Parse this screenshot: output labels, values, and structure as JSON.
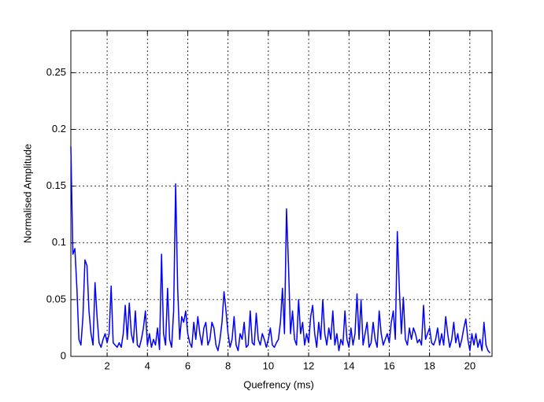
{
  "chart_data": {
    "type": "line",
    "xlabel": "Quefrency (ms)",
    "ylabel": "Normalised Amplitude",
    "xlim": [
      0.2,
      21.1
    ],
    "ylim": [
      0,
      0.287
    ],
    "xticks": [
      2,
      4,
      6,
      8,
      10,
      12,
      14,
      16,
      18,
      20
    ],
    "yticks": [
      0,
      0.05,
      0.1,
      0.15,
      0.2,
      0.25
    ],
    "grid": true,
    "x": [
      0.2,
      0.3,
      0.4,
      0.5,
      0.6,
      0.7,
      0.8,
      0.9,
      1.0,
      1.1,
      1.2,
      1.3,
      1.4,
      1.5,
      1.6,
      1.7,
      1.8,
      1.9,
      2.0,
      2.1,
      2.2,
      2.3,
      2.4,
      2.5,
      2.6,
      2.7,
      2.8,
      2.9,
      3.0,
      3.1,
      3.2,
      3.3,
      3.4,
      3.5,
      3.6,
      3.7,
      3.8,
      3.9,
      4.0,
      4.1,
      4.2,
      4.3,
      4.4,
      4.5,
      4.6,
      4.7,
      4.8,
      4.9,
      5.0,
      5.1,
      5.2,
      5.3,
      5.4,
      5.5,
      5.6,
      5.7,
      5.8,
      5.9,
      6.0,
      6.1,
      6.2,
      6.3,
      6.4,
      6.5,
      6.6,
      6.7,
      6.8,
      6.9,
      7.0,
      7.1,
      7.2,
      7.3,
      7.4,
      7.5,
      7.6,
      7.7,
      7.8,
      7.9,
      8.0,
      8.1,
      8.2,
      8.3,
      8.4,
      8.5,
      8.6,
      8.7,
      8.8,
      8.9,
      9.0,
      9.1,
      9.2,
      9.3,
      9.4,
      9.5,
      9.6,
      9.7,
      9.8,
      9.9,
      10.0,
      10.1,
      10.2,
      10.3,
      10.4,
      10.5,
      10.6,
      10.7,
      10.8,
      10.9,
      11.0,
      11.1,
      11.2,
      11.3,
      11.4,
      11.5,
      11.6,
      11.7,
      11.8,
      11.9,
      12.0,
      12.1,
      12.2,
      12.3,
      12.4,
      12.5,
      12.6,
      12.7,
      12.8,
      12.9,
      13.0,
      13.1,
      13.2,
      13.3,
      13.4,
      13.5,
      13.6,
      13.7,
      13.8,
      13.9,
      14.0,
      14.1,
      14.2,
      14.3,
      14.4,
      14.5,
      14.6,
      14.7,
      14.8,
      14.9,
      15.0,
      15.1,
      15.2,
      15.3,
      15.4,
      15.5,
      15.6,
      15.7,
      15.8,
      15.9,
      16.0,
      16.1,
      16.2,
      16.3,
      16.4,
      16.5,
      16.6,
      16.7,
      16.8,
      16.9,
      17.0,
      17.1,
      17.2,
      17.3,
      17.4,
      17.5,
      17.6,
      17.7,
      17.8,
      17.9,
      18.0,
      18.1,
      18.2,
      18.3,
      18.4,
      18.5,
      18.6,
      18.7,
      18.8,
      18.9,
      19.0,
      19.1,
      19.2,
      19.3,
      19.4,
      19.5,
      19.6,
      19.7,
      19.8,
      19.9,
      20.0,
      20.1,
      20.2,
      20.3,
      20.4,
      20.5,
      20.6,
      20.7,
      20.8,
      20.9,
      21.0
    ],
    "series": [
      {
        "color": "#0000ff",
        "values": [
          0.185,
          0.09,
          0.095,
          0.06,
          0.015,
          0.01,
          0.035,
          0.085,
          0.08,
          0.04,
          0.02,
          0.01,
          0.065,
          0.035,
          0.012,
          0.008,
          0.015,
          0.02,
          0.012,
          0.02,
          0.062,
          0.012,
          0.01,
          0.008,
          0.012,
          0.008,
          0.02,
          0.045,
          0.015,
          0.047,
          0.02,
          0.012,
          0.04,
          0.01,
          0.008,
          0.015,
          0.025,
          0.04,
          0.01,
          0.02,
          0.008,
          0.015,
          0.01,
          0.025,
          0.006,
          0.09,
          0.02,
          0.01,
          0.06,
          0.015,
          0.008,
          0.04,
          0.152,
          0.06,
          0.015,
          0.035,
          0.03,
          0.04,
          0.02,
          0.012,
          0.008,
          0.03,
          0.015,
          0.035,
          0.02,
          0.01,
          0.025,
          0.03,
          0.01,
          0.015,
          0.03,
          0.025,
          0.01,
          0.005,
          0.015,
          0.03,
          0.057,
          0.04,
          0.02,
          0.008,
          0.015,
          0.035,
          0.01,
          0.005,
          0.02,
          0.015,
          0.03,
          0.008,
          0.01,
          0.04,
          0.012,
          0.01,
          0.038,
          0.015,
          0.01,
          0.02,
          0.015,
          0.008,
          0.015,
          0.025,
          0.01,
          0.008,
          0.012,
          0.015,
          0.03,
          0.06,
          0.02,
          0.13,
          0.08,
          0.02,
          0.04,
          0.015,
          0.01,
          0.05,
          0.02,
          0.03,
          0.01,
          0.02,
          0.012,
          0.035,
          0.045,
          0.02,
          0.008,
          0.03,
          0.015,
          0.05,
          0.02,
          0.01,
          0.025,
          0.015,
          0.04,
          0.01,
          0.02,
          0.005,
          0.015,
          0.01,
          0.04,
          0.015,
          0.008,
          0.025,
          0.01,
          0.02,
          0.055,
          0.015,
          0.05,
          0.01,
          0.02,
          0.03,
          0.008,
          0.012,
          0.03,
          0.015,
          0.008,
          0.04,
          0.02,
          0.01,
          0.015,
          0.02,
          0.012,
          0.03,
          0.04,
          0.015,
          0.11,
          0.06,
          0.02,
          0.052,
          0.015,
          0.01,
          0.025,
          0.015,
          0.025,
          0.02,
          0.012,
          0.015,
          0.01,
          0.045,
          0.015,
          0.02,
          0.025,
          0.012,
          0.01,
          0.015,
          0.025,
          0.01,
          0.02,
          0.01,
          0.035,
          0.02,
          0.008,
          0.015,
          0.03,
          0.012,
          0.02,
          0.008,
          0.015,
          0.025,
          0.033,
          0.015,
          0.005,
          0.02,
          0.01,
          0.02,
          0.008,
          0.015,
          0.005,
          0.03,
          0.01,
          0.005,
          0.003
        ]
      }
    ]
  }
}
